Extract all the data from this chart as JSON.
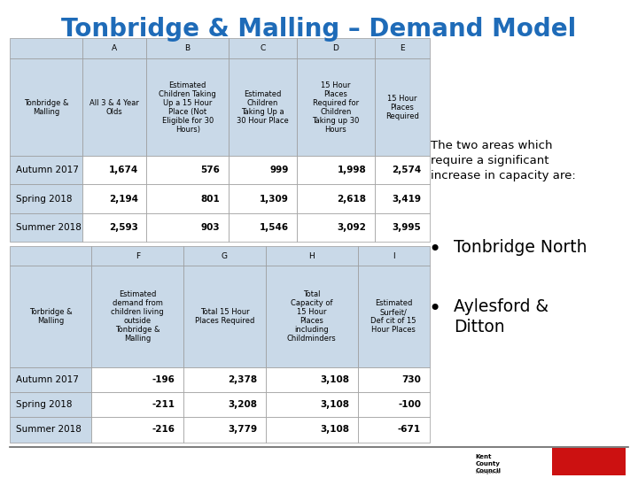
{
  "title": "Tonbridge & Malling – Demand Model",
  "title_color": "#1E6BB8",
  "title_fontsize": 20,
  "background_color": "#FFFFFF",
  "header_bg": "#C9D9E8",
  "row_header_bg": "#C9D9E8",
  "grid_color": "#999999",
  "table1": {
    "col_letters": [
      "",
      "A",
      "B",
      "C",
      "D",
      "E"
    ],
    "col_headers": [
      "Tonbridge &\nMalling",
      "All 3 & 4 Year\nOlds",
      "Estimated\nChildren Taking\nUp a 15 Hour\nPlace (Not\nEligible for 30\nHours)",
      "Estimated\nChildren\nTaking Up a\n30 Hour Place",
      "15 Hour\nPlaces\nRequired for\nChildren\nTaking up 30\nHours",
      "15 Hour\nPlaces\nRequired"
    ],
    "data_rows": [
      [
        "Autumn 2017",
        "1,674",
        "576",
        "999",
        "1,998",
        "2,574"
      ],
      [
        "Spring 2018",
        "2,194",
        "801",
        "1,309",
        "2,618",
        "3,419"
      ],
      [
        "Summer 2018",
        "2,593",
        "903",
        "1,546",
        "3,092",
        "3,995"
      ]
    ]
  },
  "table2": {
    "col_letters": [
      "",
      "F",
      "G",
      "H",
      "I"
    ],
    "col_headers": [
      "Torbridge &\nMalling",
      "Estimated\ndemand from\nchildren living\noutside\nTonbridge &\nMalling",
      "Total 15 Hour\nPlaces Required",
      "Total\nCapacity of\n15 Hour\nPlaces\nincluding\nChildminders",
      "Estimated\nSurfeit/\nDef cit of 15\nHour Places"
    ],
    "data_rows": [
      [
        "Autumn 2017",
        "-196",
        "2,378",
        "3,108",
        "730"
      ],
      [
        "Spring 2018",
        "-211",
        "3,208",
        "3,108",
        "-100"
      ],
      [
        "Summer 2018",
        "-216",
        "3,779",
        "3,108",
        "-671"
      ]
    ]
  },
  "side_text_intro": "The two areas which\nrequire a significant\nincrease in capacity are:",
  "side_text_intro_fontsize": 9.5,
  "bullet_items": [
    "Tonbridge North",
    "Aylesford &\nDitton"
  ],
  "bullet_fontsize": 13.5
}
